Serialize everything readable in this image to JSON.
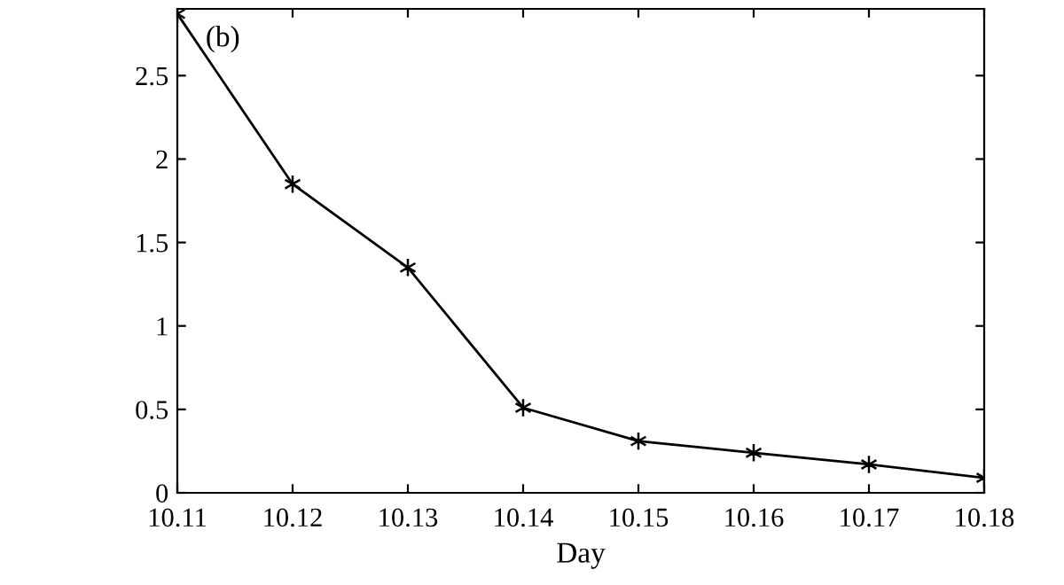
{
  "chart_data": {
    "type": "line",
    "xlabel": "Day",
    "annotations": [
      "(b)"
    ],
    "x": [
      10.11,
      10.12,
      10.13,
      10.14,
      10.15,
      10.16,
      10.17,
      10.18
    ],
    "series": [
      {
        "color": "#000000",
        "values": [
          2.87,
          1.85,
          1.35,
          0.51,
          0.31,
          0.24,
          0.17,
          0.09
        ]
      }
    ],
    "xlim": [
      10.11,
      10.18
    ],
    "xticks": [
      {
        "value": 10.11,
        "label": "10.11"
      },
      {
        "value": 10.12,
        "label": "10.12"
      },
      {
        "value": 10.13,
        "label": "10.13"
      },
      {
        "value": 10.14,
        "label": "10.14"
      },
      {
        "value": 10.15,
        "label": "10.15"
      },
      {
        "value": 10.16,
        "label": "10.16"
      },
      {
        "value": 10.17,
        "label": "10.17"
      },
      {
        "value": 10.18,
        "label": "10.18"
      }
    ],
    "ylim": [
      0,
      2.9
    ],
    "yticks": [
      0,
      0.5,
      1,
      1.5,
      2,
      2.5
    ],
    "grid": false,
    "legend": false,
    "marker": "cross",
    "line_style": "solid"
  }
}
